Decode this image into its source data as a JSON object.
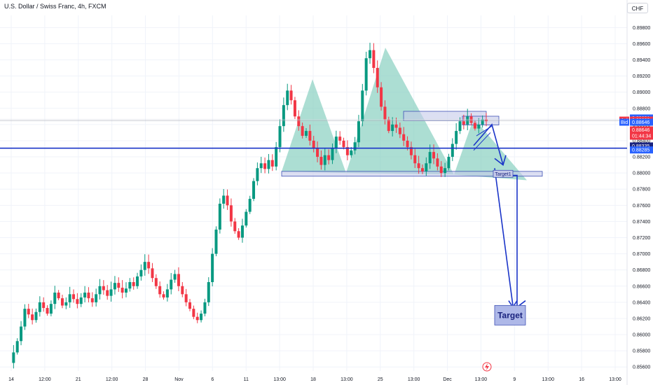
{
  "header": {
    "symbol_title": "U.S. Dollar / Swiss Franc, 4h, FXCM",
    "currency_button": "CHF"
  },
  "chart_data": {
    "type": "candlestick",
    "title": "U.S. Dollar / Swiss Franc, 4h, FXCM",
    "ylim": [
      0.8555,
      0.8995
    ],
    "y_ticks": [
      "0.89800",
      "0.89600",
      "0.89400",
      "0.89200",
      "0.89000",
      "0.88800",
      "0.88600",
      "0.88400",
      "0.88200",
      "0.88000",
      "0.87800",
      "0.87600",
      "0.87400",
      "0.87200",
      "0.87000",
      "0.86800",
      "0.86600",
      "0.86400",
      "0.86200",
      "0.86000",
      "0.85800",
      "0.85600"
    ],
    "x_ticks": [
      "14",
      "12:00",
      "21",
      "12:00",
      "28",
      "Nov",
      "6",
      "11",
      "13:00",
      "18",
      "13:00",
      "25",
      "13:00",
      "Dec",
      "13:00",
      "9",
      "13:00",
      "16",
      "13:00"
    ],
    "close_path": [
      0.8565,
      0.8578,
      0.8592,
      0.861,
      0.8632,
      0.8625,
      0.8618,
      0.8628,
      0.864,
      0.8633,
      0.8626,
      0.8638,
      0.8652,
      0.8645,
      0.8636,
      0.864,
      0.865,
      0.8644,
      0.8638,
      0.8646,
      0.8652,
      0.8645,
      0.864,
      0.865,
      0.866,
      0.8655,
      0.8648,
      0.8656,
      0.8664,
      0.8658,
      0.8652,
      0.8657,
      0.8665,
      0.866,
      0.8672,
      0.868,
      0.869,
      0.8682,
      0.867,
      0.866,
      0.865,
      0.8646,
      0.8656,
      0.8668,
      0.8675,
      0.866,
      0.865,
      0.864,
      0.8632,
      0.8622,
      0.8618,
      0.8626,
      0.864,
      0.8665,
      0.87,
      0.873,
      0.8762,
      0.8772,
      0.876,
      0.874,
      0.8728,
      0.872,
      0.8735,
      0.8752,
      0.8768,
      0.879,
      0.8806,
      0.8812,
      0.8805,
      0.8816,
      0.8808,
      0.8832,
      0.8858,
      0.8884,
      0.8902,
      0.889,
      0.887,
      0.8858,
      0.8846,
      0.8852,
      0.884,
      0.883,
      0.882,
      0.881,
      0.8822,
      0.8816,
      0.883,
      0.8845,
      0.884,
      0.8832,
      0.8822,
      0.8828,
      0.8838,
      0.8864,
      0.8902,
      0.8942,
      0.8952,
      0.893,
      0.8906,
      0.8882,
      0.8866,
      0.8852,
      0.886,
      0.8856,
      0.8848,
      0.884,
      0.8832,
      0.8822,
      0.8812,
      0.8806,
      0.8802,
      0.8812,
      0.8826,
      0.8818,
      0.8808,
      0.88,
      0.8806,
      0.882,
      0.8836,
      0.8852,
      0.8864,
      0.886,
      0.887,
      0.8862,
      0.8855,
      0.886,
      0.8866,
      0.8864
    ],
    "patterns": {
      "head_and_shoulders": {
        "left_shoulder": {
          "neck_left": 0.8802,
          "peak": 0.8916,
          "neck_right": 0.88
        },
        "head": {
          "peak": 0.8955,
          "neck_right": 0.8798
        },
        "right_shoulder": {
          "peak": 0.8868,
          "end": 0.8791
        }
      },
      "resistance_zone": {
        "top": 0.8872,
        "bottom": 0.8862
      },
      "neckline_zone": {
        "top": 0.8802,
        "bottom": 0.8796
      },
      "horizontal_line": 0.88307,
      "target1": {
        "label": "Target1",
        "level": 0.8799
      },
      "target": {
        "label": "Target",
        "level": 0.8624
      }
    },
    "price_labels": {
      "high": {
        "text": "0.88681",
        "color": "#2962ff"
      },
      "ask": {
        "label": "Ask",
        "text": "0.88663",
        "color": "#f23645"
      },
      "bid": {
        "label": "Bid",
        "text": "0.88646",
        "color": "#2962ff"
      },
      "last": {
        "text": "0.88646",
        "countdown": "01:44:34",
        "color": "#f23645"
      },
      "line1": {
        "text": "0.88335",
        "color": "#1a237e"
      },
      "line2": {
        "text": "0.88285",
        "color": "#2962ff"
      }
    },
    "colors": {
      "up": "#089981",
      "down": "#f23645",
      "pattern_fill": "#7fcdbb",
      "drawing": "#1a34c8",
      "zone_fill": "#c5cae9"
    },
    "grid": true
  }
}
